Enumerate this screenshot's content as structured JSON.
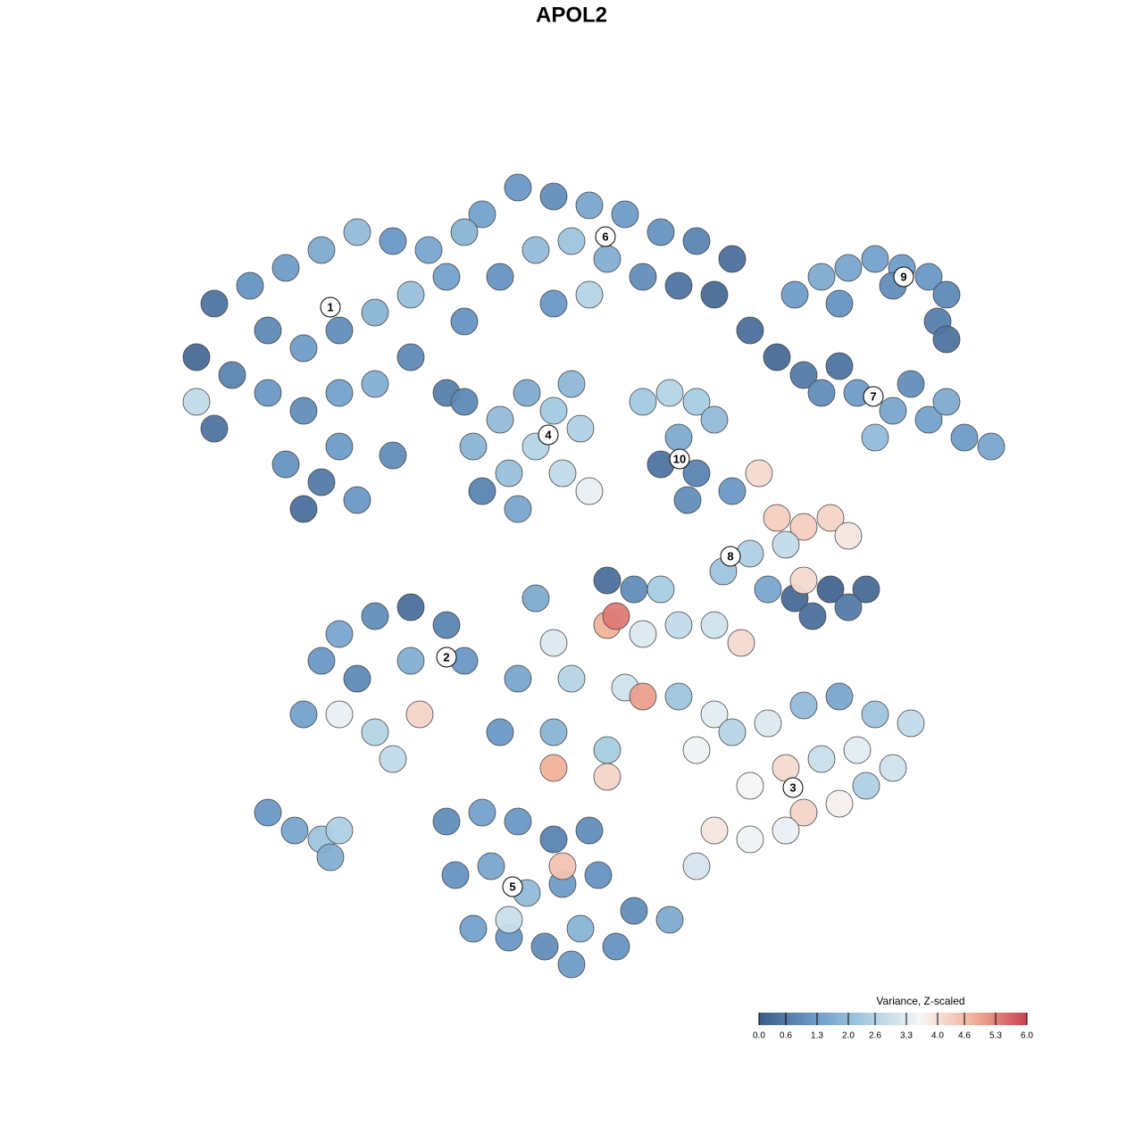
{
  "chart_data": {
    "type": "scatter",
    "title": "APOL2",
    "xlim": [
      -50,
      50
    ],
    "ylim": [
      -50,
      50
    ],
    "x": [
      -40,
      -36,
      -32,
      -28,
      -24,
      -20,
      -16,
      -34,
      -30,
      -26,
      -22,
      -18,
      -14,
      -12,
      -42,
      -38,
      -34,
      -30,
      -26,
      -22,
      -18,
      -32,
      -28,
      -26,
      -30,
      -24,
      -20,
      -14,
      -40,
      -42,
      -10,
      -6,
      -2,
      2,
      6,
      10,
      14,
      18,
      -4,
      0,
      4,
      8,
      12,
      -8,
      2,
      -2,
      16,
      -12,
      25,
      28,
      31,
      34,
      37,
      40,
      42,
      41,
      36,
      30,
      42,
      20,
      23,
      26,
      28,
      32,
      36,
      40,
      44,
      47,
      38,
      30,
      42,
      34,
      -11,
      -8,
      -5,
      -2,
      1,
      -4,
      -7,
      -1,
      2,
      -10,
      -6,
      0,
      -12,
      8,
      11,
      14,
      12,
      14,
      10,
      13,
      16,
      18,
      21,
      23,
      26,
      29,
      31,
      24,
      20,
      17,
      22,
      25,
      29,
      33,
      27,
      31,
      26,
      4,
      7,
      10,
      4,
      5,
      8,
      12,
      16,
      19,
      -2,
      -6,
      0,
      6,
      8,
      12,
      16,
      -8,
      -2,
      4,
      -4,
      14,
      18,
      22,
      26,
      30,
      34,
      38,
      24,
      28,
      32,
      20,
      26,
      30,
      16,
      20,
      24,
      33,
      36,
      14,
      -2,
      4,
      -26,
      -22,
      -18,
      -14,
      -12,
      -18,
      -24,
      -28,
      -30,
      -26,
      -22,
      -17,
      -20,
      -34,
      -31,
      -28,
      -26,
      -27,
      -14,
      -10,
      -6,
      -2,
      2,
      -13,
      -9,
      -5,
      -1,
      3,
      7,
      11,
      -11,
      -7,
      -3,
      1,
      5,
      0,
      -1,
      -7
    ],
    "values": [
      30,
      32,
      34,
      36,
      38,
      37,
      36,
      27,
      25,
      27,
      29,
      31,
      33,
      28,
      24,
      22,
      20,
      18,
      20,
      21,
      24,
      12,
      10,
      14,
      7,
      8,
      13,
      20,
      16,
      19,
      40,
      43,
      42,
      41,
      40,
      38,
      37,
      35,
      36,
      37,
      35,
      33,
      32,
      33,
      31,
      30,
      31,
      38,
      31,
      33,
      34,
      35,
      34,
      33,
      31,
      28,
      32,
      30,
      26,
      27,
      24,
      22,
      20,
      20,
      18,
      17,
      15,
      14,
      21,
      23,
      19,
      15,
      14,
      17,
      20,
      18,
      16,
      14,
      11,
      11,
      9,
      9,
      7,
      21,
      19,
      19,
      20,
      19,
      15,
      11,
      12,
      8,
      17,
      9,
      11,
      6,
      5,
      6,
      4,
      3,
      2,
      0,
      -2,
      -3,
      -2,
      -2,
      -5,
      -4,
      -1,
      -1,
      -2,
      -2,
      -6,
      -5,
      -7,
      -6,
      -6,
      -8,
      -8,
      -12,
      -12,
      -13,
      -14,
      -14,
      -16,
      -18,
      -18,
      -20,
      -3,
      -20,
      -18,
      -17,
      -15,
      -14,
      -16,
      -17,
      -22,
      -21,
      -20,
      -24,
      -27,
      -26,
      -29,
      -30,
      -29,
      -24,
      -22,
      -33,
      -22,
      -23,
      -7,
      -5,
      -4,
      -6,
      -10,
      -10,
      -12,
      -10,
      -16,
      -16,
      -18,
      -16,
      -21,
      -27,
      -29,
      -30,
      -29,
      -32,
      -28,
      -27,
      -28,
      -30,
      -29,
      -34,
      -33,
      -36,
      -35,
      -34,
      -38,
      -39,
      -40,
      -41,
      -42,
      -40,
      -42,
      -44,
      -33,
      -39
    ],
    "color_values": [
      0.5,
      1.1,
      1.3,
      1.6,
      2.0,
      1.2,
      1.5,
      0.9,
      1.3,
      1.0,
      1.8,
      2.1,
      1.4,
      1.1,
      0.3,
      0.8,
      1.2,
      1.0,
      1.4,
      1.7,
      0.9,
      1.1,
      0.6,
      1.3,
      0.4,
      1.2,
      1.0,
      0.7,
      0.5,
      2.8,
      1.4,
      1.2,
      1.0,
      1.5,
      1.3,
      1.1,
      0.8,
      0.4,
      2.0,
      2.2,
      1.7,
      1.0,
      0.5,
      1.1,
      2.6,
      1.2,
      0.3,
      1.8,
      1.3,
      1.6,
      1.5,
      1.4,
      1.3,
      1.2,
      0.9,
      0.7,
      1.0,
      1.1,
      0.5,
      0.4,
      0.3,
      0.6,
      1.0,
      1.3,
      1.5,
      1.4,
      1.3,
      1.5,
      1.0,
      0.5,
      1.6,
      2.0,
      1.8,
      2.0,
      1.6,
      2.3,
      2.5,
      2.6,
      2.1,
      2.8,
      3.4,
      0.8,
      1.5,
      1.9,
      0.9,
      2.3,
      2.6,
      2.4,
      1.6,
      0.8,
      0.5,
      1.0,
      2.0,
      1.2,
      4.1,
      4.3,
      4.3,
      4.2,
      3.9,
      2.8,
      2.5,
      2.2,
      1.5,
      0.3,
      0.2,
      0.3,
      0.4,
      0.6,
      4.1,
      0.4,
      1.0,
      2.4,
      4.8,
      5.4,
      3.2,
      2.8,
      3.0,
      4.1,
      3.2,
      1.5,
      2.6,
      3.0,
      5.0,
      2.2,
      3.3,
      1.2,
      1.8,
      2.4,
      1.6,
      3.5,
      2.6,
      3.2,
      2.0,
      1.5,
      2.2,
      2.8,
      4.1,
      2.9,
      3.3,
      3.6,
      4.2,
      3.7,
      3.9,
      3.5,
      3.4,
      2.5,
      3.0,
      3.1,
      4.8,
      4.2,
      1.5,
      1.0,
      0.4,
      0.8,
      1.2,
      1.7,
      0.9,
      1.2,
      1.4,
      3.4,
      2.6,
      4.2,
      2.8,
      1.2,
      1.5,
      2.2,
      2.5,
      1.7,
      1.0,
      1.4,
      1.2,
      0.8,
      1.0,
      1.1,
      1.5,
      2.0,
      1.3,
      1.1,
      1.0,
      1.6,
      1.4,
      1.2,
      1.0,
      1.8,
      1.1,
      1.3,
      4.5,
      2.9
    ],
    "annotations": [
      {
        "label": "1",
        "x": -27,
        "y": 29.6
      },
      {
        "label": "2",
        "x": -14,
        "y": -9.6
      },
      {
        "label": "3",
        "x": 24.8,
        "y": -24.2
      },
      {
        "label": "4",
        "x": -2.6,
        "y": 15.3
      },
      {
        "label": "5",
        "x": -6.6,
        "y": -35.3
      },
      {
        "label": "6",
        "x": 3.8,
        "y": 37.5
      },
      {
        "label": "7",
        "x": 33.8,
        "y": 19.6
      },
      {
        "label": "8",
        "x": 17.8,
        "y": 1.7
      },
      {
        "label": "9",
        "x": 37.2,
        "y": 33
      },
      {
        "label": "10",
        "x": 12.1,
        "y": 12.6
      }
    ],
    "colorbar": {
      "title": "Variance, Z-scaled",
      "clim": [
        0,
        6
      ],
      "colors": [
        "#3b5b86",
        "#6a98c6",
        "#a8cde2",
        "#f6f6f6",
        "#f2b29a",
        "#c8414f"
      ],
      "ticks": [
        {
          "value": 0,
          "label": "0.0"
        },
        0.6,
        1.3,
        {
          "value": 2,
          "label": "2.0"
        },
        2.6,
        3.3,
        {
          "value": 4,
          "label": "4.0"
        },
        4.6,
        5.3,
        {
          "value": 6,
          "label": "6.0"
        }
      ]
    }
  }
}
